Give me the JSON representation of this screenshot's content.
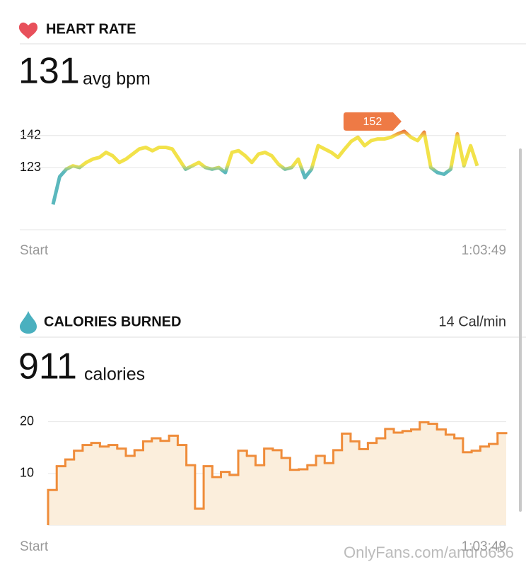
{
  "heart_rate": {
    "title": "HEART RATE",
    "value": "131",
    "unit": "avg bpm"
  },
  "calories": {
    "title": "CALORIES BURNED",
    "rate": "14 Cal/min",
    "value": "911",
    "unit": "calories"
  },
  "watermark": "OnlyFans.com/andro656",
  "chart_data": [
    {
      "type": "line",
      "ylim": [
        86,
        160
      ],
      "yticks": [
        123,
        142
      ],
      "grid": true,
      "x_labels": [
        "Start",
        "1:03:49"
      ],
      "annotation": "152",
      "color": "#f2e24a",
      "values": [
        101,
        117.5,
        122,
        124,
        123,
        126,
        128,
        129,
        132,
        130,
        126,
        128,
        131,
        134,
        135,
        133,
        135,
        135,
        134,
        128,
        122,
        124,
        126,
        123,
        122,
        123,
        120,
        132,
        133,
        130,
        126,
        131,
        132,
        130,
        125,
        122,
        123,
        128,
        117,
        122,
        136,
        134,
        132,
        129,
        134,
        138.6,
        141,
        136,
        139,
        140,
        140,
        141,
        143,
        144.5,
        141,
        139,
        144,
        123,
        120,
        119,
        122,
        143,
        124,
        136,
        124
      ]
    },
    {
      "type": "step-area",
      "ylim": [
        0,
        22
      ],
      "yticks": [
        10,
        20
      ],
      "grid": true,
      "x_labels": [
        "Start",
        "1:03:49"
      ],
      "color": "#ef8c3a",
      "fill": "#fbeedc",
      "values": [
        6.8,
        11.4,
        12.7,
        14.4,
        15.5,
        15.9,
        15.2,
        15.5,
        14.8,
        13.4,
        14.5,
        16.2,
        16.8,
        16.3,
        17.3,
        15.5,
        11.6,
        3.2,
        11.4,
        9.3,
        10.3,
        9.7,
        14.4,
        13.4,
        11.6,
        14.8,
        14.5,
        13,
        10.7,
        10.8,
        11.6,
        13.4,
        12,
        14.5,
        17.7,
        16.2,
        14.7,
        15.9,
        16.8,
        18.6,
        17.9,
        18.2,
        18.5,
        19.9,
        19.6,
        18.5,
        17.5,
        16.8,
        14.1,
        14.4,
        15.2,
        15.7,
        17.8
      ]
    }
  ]
}
